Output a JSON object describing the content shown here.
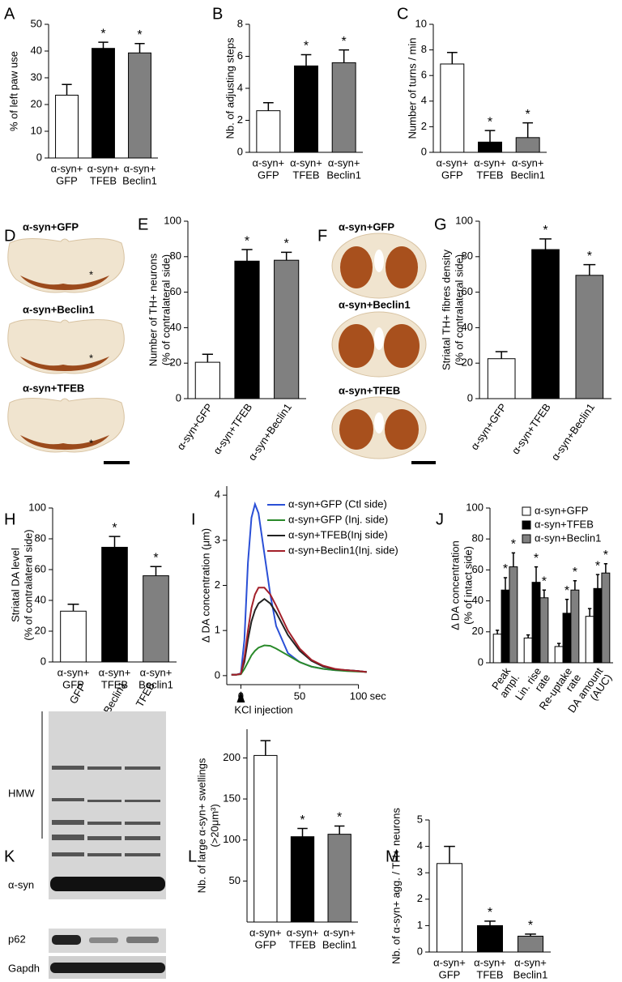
{
  "chart_data": [
    {
      "panel": "A",
      "type": "bar",
      "ylabel": [
        "% of left paw use"
      ],
      "categories": [
        [
          "α-syn+",
          "GFP"
        ],
        [
          "α-syn+",
          "TFEB"
        ],
        [
          "α-syn+",
          "Beclin1"
        ]
      ],
      "values": [
        23.5,
        41,
        39.3
      ],
      "errors": [
        4,
        2.3,
        3.5
      ],
      "colors": [
        "#ffffff",
        "#000000",
        "#808080"
      ],
      "significance": [
        null,
        "*",
        "*"
      ],
      "ylim": [
        0,
        50
      ],
      "yticks": [
        0,
        10,
        20,
        30,
        40,
        50
      ]
    },
    {
      "panel": "B",
      "type": "bar",
      "ylabel": [
        "Nb. of adjusting steps"
      ],
      "categories": [
        [
          "α-syn+",
          "GFP"
        ],
        [
          "α-syn+",
          "TFEB"
        ],
        [
          "α-syn+",
          "Beclin1"
        ]
      ],
      "values": [
        2.6,
        5.4,
        5.6
      ],
      "errors": [
        0.5,
        0.7,
        0.8
      ],
      "colors": [
        "#ffffff",
        "#000000",
        "#808080"
      ],
      "significance": [
        null,
        "*",
        "*"
      ],
      "ylim": [
        0,
        8
      ],
      "yticks": [
        0,
        2,
        4,
        6,
        8
      ]
    },
    {
      "panel": "C",
      "type": "bar",
      "ylabel": [
        "Number of turns / min"
      ],
      "categories": [
        [
          "α-syn+",
          "GFP"
        ],
        [
          "α-syn+",
          "TFEB"
        ],
        [
          "α-syn+",
          "Beclin1"
        ]
      ],
      "values": [
        6.9,
        0.8,
        1.15
      ],
      "errors": [
        0.9,
        0.9,
        1.15
      ],
      "colors": [
        "#ffffff",
        "#000000",
        "#808080"
      ],
      "significance": [
        null,
        "*",
        "*"
      ],
      "ylim": [
        0,
        10
      ],
      "yticks": [
        0,
        2,
        4,
        6,
        8,
        10
      ]
    },
    {
      "panel": "E",
      "type": "bar",
      "ylabel": [
        "Number of TH+ neurons",
        "(% of contralateral side)"
      ],
      "categories": [
        [
          "α-syn+GFP"
        ],
        [
          "α-syn+TFEB"
        ],
        [
          "α-syn+Beclin1"
        ]
      ],
      "values": [
        20.5,
        77.5,
        78
      ],
      "errors": [
        4.5,
        6.5,
        4.5
      ],
      "colors": [
        "#ffffff",
        "#000000",
        "#808080"
      ],
      "significance": [
        null,
        "*",
        "*"
      ],
      "ylim": [
        0,
        100
      ],
      "yticks": [
        0,
        20,
        40,
        60,
        80,
        100
      ]
    },
    {
      "panel": "G",
      "type": "bar",
      "ylabel": [
        "Striatal TH+ fibres density",
        "(% of contralateral side)"
      ],
      "categories": [
        [
          "α-syn+GFP"
        ],
        [
          "α-syn+TFEB"
        ],
        [
          "α-syn+Beclin1"
        ]
      ],
      "values": [
        22.5,
        84,
        69.5
      ],
      "errors": [
        4,
        6,
        6
      ],
      "colors": [
        "#ffffff",
        "#000000",
        "#808080"
      ],
      "significance": [
        null,
        "*",
        "*"
      ],
      "ylim": [
        0,
        100
      ],
      "yticks": [
        0,
        20,
        40,
        60,
        80,
        100
      ]
    },
    {
      "panel": "H",
      "type": "bar",
      "ylabel": [
        "Striatal DA level",
        "(% of contralateral side)"
      ],
      "categories": [
        [
          "α-syn+",
          "GFP"
        ],
        [
          "α-syn+",
          "TFEB"
        ],
        [
          "α-syn+",
          "Beclin1"
        ]
      ],
      "values": [
        33,
        74.5,
        56
      ],
      "errors": [
        4.5,
        7,
        6
      ],
      "colors": [
        "#ffffff",
        "#000000",
        "#808080"
      ],
      "significance": [
        null,
        "*",
        "*"
      ],
      "ylim": [
        0,
        100
      ],
      "yticks": [
        0,
        20,
        40,
        60,
        80,
        100
      ]
    },
    {
      "panel": "I",
      "type": "line",
      "ylabel": [
        "Δ DA concentration (μm)"
      ],
      "xlabel": "sec",
      "annotation": "KCl injection",
      "x": [
        -8,
        -4,
        0,
        3,
        6,
        9,
        12,
        15,
        20,
        25,
        30,
        40,
        50,
        60,
        70,
        80,
        90,
        100,
        107
      ],
      "series": [
        {
          "name": "α-syn+GFP (Ctl side)",
          "color": "#2a4fd6",
          "values": [
            0.02,
            0.02,
            0.05,
            0.8,
            2.5,
            3.5,
            3.8,
            3.6,
            2.7,
            1.8,
            1.1,
            0.5,
            0.3,
            0.2,
            0.15,
            0.12,
            0.12,
            0.1,
            0.08
          ]
        },
        {
          "name": "α-syn+GFP (Inj. side)",
          "color": "#2a8a2a",
          "values": [
            0.02,
            0.02,
            0.03,
            0.15,
            0.3,
            0.45,
            0.55,
            0.62,
            0.67,
            0.66,
            0.6,
            0.45,
            0.3,
            0.2,
            0.15,
            0.12,
            0.1,
            0.09,
            0.08
          ]
        },
        {
          "name": "α-syn+TFEB(Inj side)",
          "color": "#222222",
          "values": [
            0.02,
            0.02,
            0.04,
            0.3,
            0.8,
            1.2,
            1.45,
            1.6,
            1.7,
            1.6,
            1.4,
            0.9,
            0.55,
            0.33,
            0.2,
            0.14,
            0.12,
            0.1,
            0.08
          ]
        },
        {
          "name": "α-syn+Beclin1(Inj. side)",
          "color": "#a3202a",
          "values": [
            0.02,
            0.02,
            0.04,
            0.4,
            1.0,
            1.5,
            1.8,
            1.95,
            1.95,
            1.8,
            1.55,
            1.0,
            0.6,
            0.35,
            0.22,
            0.15,
            0.12,
            0.1,
            0.08
          ]
        }
      ],
      "xlim": [
        -12,
        112
      ],
      "xticks": [
        0,
        50,
        100
      ],
      "ylim": [
        -0.2,
        4.2
      ],
      "yticks": [
        0,
        1,
        2,
        3,
        4
      ]
    },
    {
      "panel": "J",
      "type": "grouped-bar",
      "ylabel": [
        "Δ DA concentration",
        "(% of intact side)"
      ],
      "categories": [
        [
          "Peak",
          "ampl."
        ],
        [
          "Lin. rise",
          "rate"
        ],
        [
          "Re-uptake",
          "rate"
        ],
        [
          "DA amount",
          "(AUC)"
        ]
      ],
      "series": [
        {
          "name": "α-syn+GFP",
          "color": "#ffffff",
          "values": [
            18.5,
            16,
            10.5,
            30
          ],
          "errors": [
            2.5,
            2,
            2,
            5
          ],
          "significance": [
            null,
            null,
            null,
            null
          ]
        },
        {
          "name": "α-syn+TFEB",
          "color": "#000000",
          "values": [
            47,
            52,
            32,
            48
          ],
          "errors": [
            8,
            10,
            9,
            9
          ],
          "significance": [
            "*",
            "*",
            "*",
            "*"
          ]
        },
        {
          "name": "α-syn+Beclin1",
          "color": "#808080",
          "values": [
            62,
            42,
            47,
            58
          ],
          "errors": [
            9,
            5,
            6,
            6
          ],
          "significance": [
            "*",
            "*",
            "*",
            "*"
          ]
        }
      ],
      "ylim": [
        0,
        100
      ],
      "yticks": [
        0,
        20,
        40,
        60,
        80,
        100
      ]
    },
    {
      "panel": "L",
      "type": "bar",
      "ylabel": [
        "Nb. of large α-syn+ swellings",
        "(>20μm³)"
      ],
      "categories": [
        [
          "α-syn+",
          "GFP"
        ],
        [
          "α-syn+",
          "TFEB"
        ],
        [
          "α-syn+",
          "Beclin1"
        ]
      ],
      "values": [
        203,
        104,
        107
      ],
      "errors": [
        18,
        10,
        10
      ],
      "colors": [
        "#ffffff",
        "#000000",
        "#808080"
      ],
      "significance": [
        null,
        "*",
        "*"
      ],
      "ylim": [
        0,
        235
      ],
      "yticks": [
        50,
        100,
        150,
        200
      ]
    },
    {
      "panel": "M",
      "type": "bar",
      "ylabel": [
        "Nb. of α-syn+ agg. / TH+ neurons"
      ],
      "categories": [
        [
          "α-syn+",
          "GFP"
        ],
        [
          "α-syn+",
          "TFEB"
        ],
        [
          "α-syn+",
          "Beclin1"
        ]
      ],
      "values": [
        3.35,
        1.0,
        0.6
      ],
      "errors": [
        0.65,
        0.17,
        0.08
      ],
      "colors": [
        "#ffffff",
        "#000000",
        "#808080"
      ],
      "significance": [
        null,
        "*",
        "*"
      ],
      "ylim": [
        0,
        5
      ],
      "yticks": [
        0,
        1,
        2,
        3,
        4,
        5
      ]
    }
  ],
  "image_panels": [
    {
      "panel": "D",
      "labels": [
        "α-syn+GFP",
        "α-syn+Beclin1",
        "α-syn+TFEB"
      ],
      "marks": [
        "*",
        "*",
        "*"
      ]
    },
    {
      "panel": "F",
      "labels": [
        "α-syn+GFP",
        "α-syn+Beclin1",
        "α-syn+TFEB"
      ]
    },
    {
      "panel": "K",
      "lanes": [
        "GFP",
        "Beclin1",
        "TFEB"
      ],
      "bands": [
        "HMW",
        "α-syn",
        "p62",
        "Gapdh"
      ]
    }
  ]
}
